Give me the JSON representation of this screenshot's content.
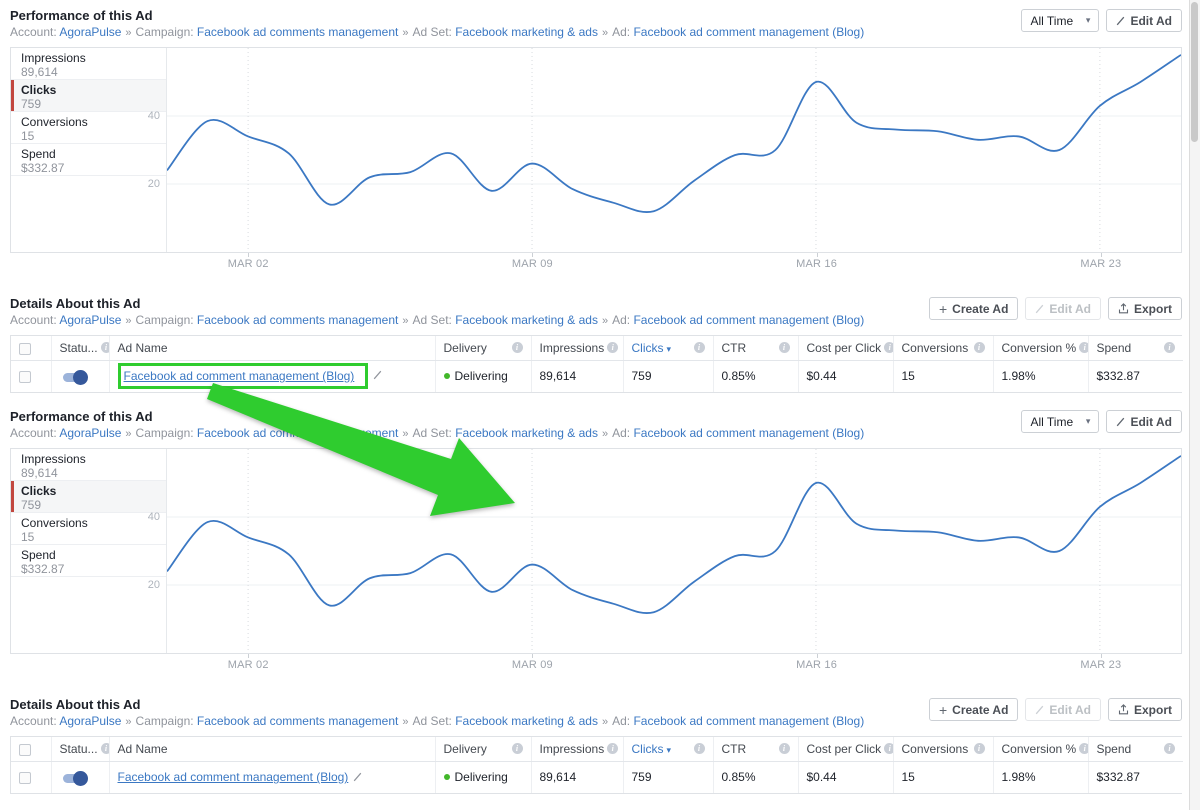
{
  "annotation": {
    "color": "#2fcc2f"
  },
  "colors": {
    "link_blue": "#3b78c3",
    "chart_line": "#3b78c3",
    "toggle_blue": "#35589b",
    "selected_metric_red": "#c2473f",
    "delivering_green": "#42b72a",
    "annotation_green": "#2fcc2f"
  },
  "breadcrumb": {
    "separator": "»",
    "items": [
      {
        "label": "Account:",
        "value": "AgoraPulse"
      },
      {
        "label": "Campaign:",
        "value": "Facebook ad comments management"
      },
      {
        "label": "Ad Set:",
        "value": "Facebook marketing & ads"
      },
      {
        "label": "Ad:",
        "value": "Facebook ad comment management (Blog)"
      }
    ]
  },
  "performance": {
    "title": "Performance of this Ad",
    "time_range": "All Time",
    "edit_button": "Edit Ad",
    "metrics": [
      {
        "name": "Impressions",
        "value": "89,614",
        "selected": false
      },
      {
        "name": "Clicks",
        "value": "759",
        "selected": true
      },
      {
        "name": "Conversions",
        "value": "15",
        "selected": false
      },
      {
        "name": "Spend",
        "value": "$332.87",
        "selected": false
      }
    ],
    "chart_data": {
      "type": "line",
      "series_name": "Clicks",
      "line_color": "#3b78c3",
      "x": [
        "FEB 28",
        "MAR 01",
        "MAR 02",
        "MAR 03",
        "MAR 04",
        "MAR 05",
        "MAR 06",
        "MAR 07",
        "MAR 08",
        "MAR 09",
        "MAR 10",
        "MAR 11",
        "MAR 12",
        "MAR 13",
        "MAR 14",
        "MAR 15",
        "MAR 16",
        "MAR 17",
        "MAR 18",
        "MAR 19",
        "MAR 20",
        "MAR 21",
        "MAR 22",
        "MAR 23",
        "MAR 24",
        "MAR 25"
      ],
      "values": [
        24,
        38.5,
        34,
        29,
        14,
        22,
        23.5,
        29,
        18,
        26,
        18.5,
        14.5,
        12,
        21,
        28.5,
        30,
        50,
        38,
        36,
        35.5,
        33,
        34,
        30,
        43,
        50,
        58
      ],
      "ticks": [
        {
          "index": 2,
          "label": "MAR 02"
        },
        {
          "index": 9,
          "label": "MAR 09"
        },
        {
          "index": 16,
          "label": "MAR 16"
        },
        {
          "index": 23,
          "label": "MAR 23"
        }
      ],
      "y_gridlines": [
        20,
        40
      ],
      "ylim": [
        0,
        60
      ],
      "grid": true,
      "legend": "none"
    }
  },
  "details": {
    "title": "Details About this Ad",
    "buttons": {
      "create": "Create Ad",
      "edit": "Edit Ad",
      "export": "Export"
    },
    "table": {
      "columns": [
        {
          "label": "Statu...",
          "info": true
        },
        {
          "label": "Ad Name",
          "info": false
        },
        {
          "label": "Delivery",
          "info": true
        },
        {
          "label": "Impressions",
          "info": true
        },
        {
          "label": "Clicks",
          "info": true,
          "sorted": true
        },
        {
          "label": "CTR",
          "info": true
        },
        {
          "label": "Cost per Click",
          "info": true
        },
        {
          "label": "Conversions",
          "info": true
        },
        {
          "label": "Conversion %",
          "info": true
        },
        {
          "label": "Spend",
          "info": true
        }
      ],
      "row": {
        "status_on": true,
        "ad_name": "Facebook ad comment management (Blog)",
        "delivery": "Delivering",
        "impressions": "89,614",
        "clicks": "759",
        "ctr": "0.85%",
        "cost_per_click": "$0.44",
        "conversions": "15",
        "conversion_pct": "1.98%",
        "spend": "$332.87"
      }
    }
  }
}
